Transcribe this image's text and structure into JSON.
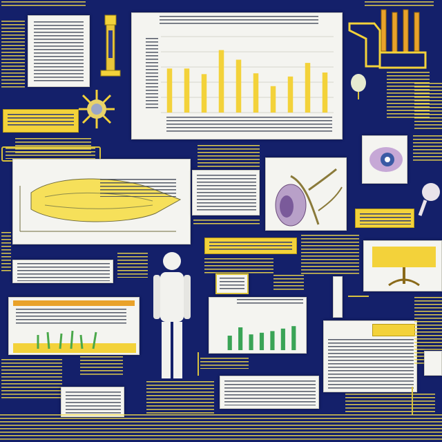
{
  "colors": {
    "background": "#14206a",
    "accent_yellow": "#f3d23a",
    "panel_white": "#f4f4f0",
    "bar_green": "#3aa456",
    "text_gray": "#444a5a"
  },
  "center_chart": {
    "bar_levels": [
      0.55,
      0.55,
      0.48,
      0.78,
      0.66,
      0.49,
      0.33,
      0.45,
      0.62,
      0.5
    ]
  },
  "green_chart": {
    "bar_levels": [
      0.35,
      0.55,
      0.38,
      0.42,
      0.46,
      0.52,
      0.58
    ]
  },
  "icons": {
    "human_figure": "human-figure-icon",
    "microscope": "microscope-icon",
    "sunburst": "sunburst-icon",
    "pipe_organ": "pipe-organ-icon",
    "plant_specimen": "plant-specimen-icon",
    "eye_specimen": "eye-specimen-icon",
    "tree": "tree-icon",
    "leaf_sprouts": "leaf-sprouts-icon"
  }
}
